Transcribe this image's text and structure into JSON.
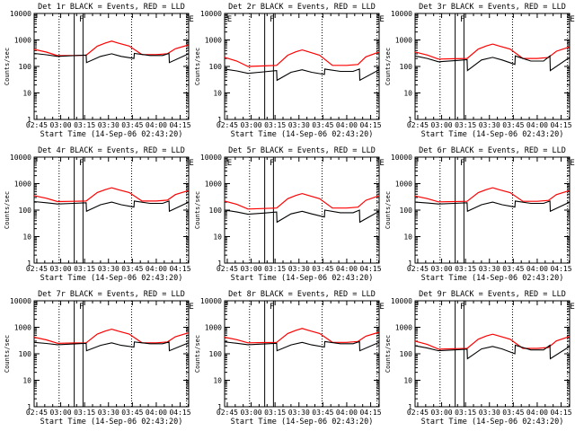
{
  "chart_data": [
    {
      "type": "line",
      "title": "Det 1r BLACK = Events, RED = LLD",
      "ylabel": "Counts/sec",
      "xlabel": "Start Time (14-Sep-06 02:43:20)",
      "x_ticks": [
        "02:45",
        "03:00",
        "03:15",
        "03:30",
        "03:45",
        "04:00",
        "04:15"
      ],
      "y_ticks": [
        "1",
        "10",
        "100",
        "1000",
        "10000"
      ],
      "ylim": [
        1,
        10000
      ],
      "yscale": "log",
      "markers": [
        "F",
        "E"
      ],
      "events_level": [
        310,
        240,
        270,
        310,
        260,
        140,
        300,
        200
      ],
      "lld_level": [
        440,
        255,
        265,
        900,
        280,
        650
      ]
    },
    {
      "type": "line",
      "title": "Det 2r BLACK = Events, RED = LLD",
      "ylabel": "Counts/sec",
      "xlabel": "Start Time (14-Sep-06 02:43:20)",
      "x_ticks": [
        "02:45",
        "03:00",
        "03:15",
        "03:30",
        "03:45",
        "04:00",
        "04:15"
      ],
      "y_ticks": [
        "1",
        "10",
        "100",
        "1000",
        "10000"
      ],
      "ylim": [
        1,
        10000
      ],
      "yscale": "log",
      "markers": [
        "E",
        "F",
        "E"
      ],
      "events_level": [
        80,
        55,
        70,
        80,
        65,
        30,
        75,
        50
      ],
      "lld_level": [
        220,
        100,
        110,
        420,
        110,
        350
      ]
    },
    {
      "type": "line",
      "title": "Det 3r BLACK = Events, RED = LLD",
      "ylabel": "Counts/sec",
      "xlabel": "Start Time (14-Sep-06 02:43:20)",
      "x_ticks": [
        "02:45",
        "03:00",
        "03:15",
        "03:30",
        "03:45",
        "04:00",
        "04:15"
      ],
      "y_ticks": [
        "1",
        "10",
        "100",
        "1000",
        "10000"
      ],
      "ylim": [
        1,
        10000
      ],
      "yscale": "log",
      "markers": [
        "F",
        "E"
      ],
      "events_level": [
        250,
        150,
        180,
        250,
        160,
        70,
        220,
        120
      ],
      "lld_level": [
        350,
        190,
        200,
        700,
        200,
        550
      ]
    },
    {
      "type": "line",
      "title": "Det 4r BLACK = Events, RED = LLD",
      "ylabel": "Counts/sec",
      "xlabel": "Start Time (14-Sep-06 02:43:20)",
      "x_ticks": [
        "02:45",
        "03:00",
        "03:15",
        "03:30",
        "03:45",
        "04:00",
        "04:15"
      ],
      "y_ticks": [
        "1",
        "10",
        "100",
        "1000",
        "10000"
      ],
      "ylim": [
        1,
        10000
      ],
      "yscale": "log",
      "markers": [
        "F",
        "E"
      ],
      "events_level": [
        210,
        170,
        190,
        220,
        180,
        90,
        200,
        130
      ],
      "lld_level": [
        350,
        210,
        220,
        700,
        220,
        550
      ]
    },
    {
      "type": "line",
      "title": "Det 5r BLACK = Events, RED = LLD",
      "ylabel": "Counts/sec",
      "xlabel": "Start Time (14-Sep-06 02:43:20)",
      "x_ticks": [
        "02:45",
        "03:00",
        "03:15",
        "03:30",
        "03:45",
        "04:00",
        "04:15"
      ],
      "y_ticks": [
        "1",
        "10",
        "100",
        "1000",
        "10000"
      ],
      "ylim": [
        1,
        10000
      ],
      "yscale": "log",
      "markers": [
        "E",
        "F",
        "E"
      ],
      "events_level": [
        100,
        70,
        85,
        100,
        80,
        35,
        90,
        55
      ],
      "lld_level": [
        220,
        110,
        120,
        420,
        120,
        350
      ]
    },
    {
      "type": "line",
      "title": "Det 6r BLACK = Events, RED = LLD",
      "ylabel": "Counts/sec",
      "xlabel": "Start Time (14-Sep-06 02:43:20)",
      "x_ticks": [
        "02:45",
        "03:00",
        "03:15",
        "03:30",
        "03:45",
        "04:00",
        "04:15"
      ],
      "y_ticks": [
        "1",
        "10",
        "100",
        "1000",
        "10000"
      ],
      "ylim": [
        1,
        10000
      ],
      "yscale": "log",
      "markers": [
        "F",
        "E"
      ],
      "events_level": [
        200,
        170,
        190,
        220,
        180,
        90,
        200,
        130
      ],
      "lld_level": [
        340,
        205,
        215,
        700,
        215,
        550
      ]
    },
    {
      "type": "line",
      "title": "Det 7r BLACK = Events, RED = LLD",
      "ylabel": "Counts/sec",
      "xlabel": "Start Time (14-Sep-06 02:43:20)",
      "x_ticks": [
        "02:45",
        "03:00",
        "03:15",
        "03:30",
        "03:45",
        "04:00",
        "04:15"
      ],
      "y_ticks": [
        "1",
        "10",
        "100",
        "1000",
        "10000"
      ],
      "ylim": [
        1,
        10000
      ],
      "yscale": "log",
      "markers": [
        "F",
        "E"
      ],
      "events_level": [
        270,
        220,
        250,
        280,
        240,
        130,
        260,
        180
      ],
      "lld_level": [
        420,
        250,
        260,
        850,
        260,
        620
      ]
    },
    {
      "type": "line",
      "title": "Det 8r BLACK = Events, RED = LLD",
      "ylabel": "Counts/sec",
      "xlabel": "Start Time (14-Sep-06 02:43:20)",
      "x_ticks": [
        "02:45",
        "03:00",
        "03:15",
        "03:30",
        "03:45",
        "04:00",
        "04:15"
      ],
      "y_ticks": [
        "1",
        "10",
        "100",
        "1000",
        "10000"
      ],
      "ylim": [
        1,
        10000
      ],
      "yscale": "log",
      "markers": [
        "F",
        "E"
      ],
      "events_level": [
        280,
        220,
        250,
        290,
        240,
        130,
        270,
        180
      ],
      "lld_level": [
        420,
        260,
        270,
        900,
        270,
        650
      ]
    },
    {
      "type": "line",
      "title": "Det 9r BLACK = Events, RED = LLD",
      "ylabel": "Counts/sec",
      "xlabel": "Start Time (14-Sep-06 02:43:20)",
      "x_ticks": [
        "02:45",
        "03:00",
        "03:15",
        "03:30",
        "03:45",
        "04:00",
        "04:15"
      ],
      "y_ticks": [
        "1",
        "10",
        "100",
        "1000",
        "10000"
      ],
      "ylim": [
        1,
        10000
      ],
      "yscale": "log",
      "markers": [
        "F",
        "E"
      ],
      "events_level": [
        200,
        130,
        150,
        210,
        140,
        65,
        190,
        100
      ],
      "lld_level": [
        300,
        150,
        160,
        550,
        160,
        450
      ]
    }
  ],
  "colors": {
    "events": "#000000",
    "lld": "#ff0000",
    "axes": "#000000"
  }
}
